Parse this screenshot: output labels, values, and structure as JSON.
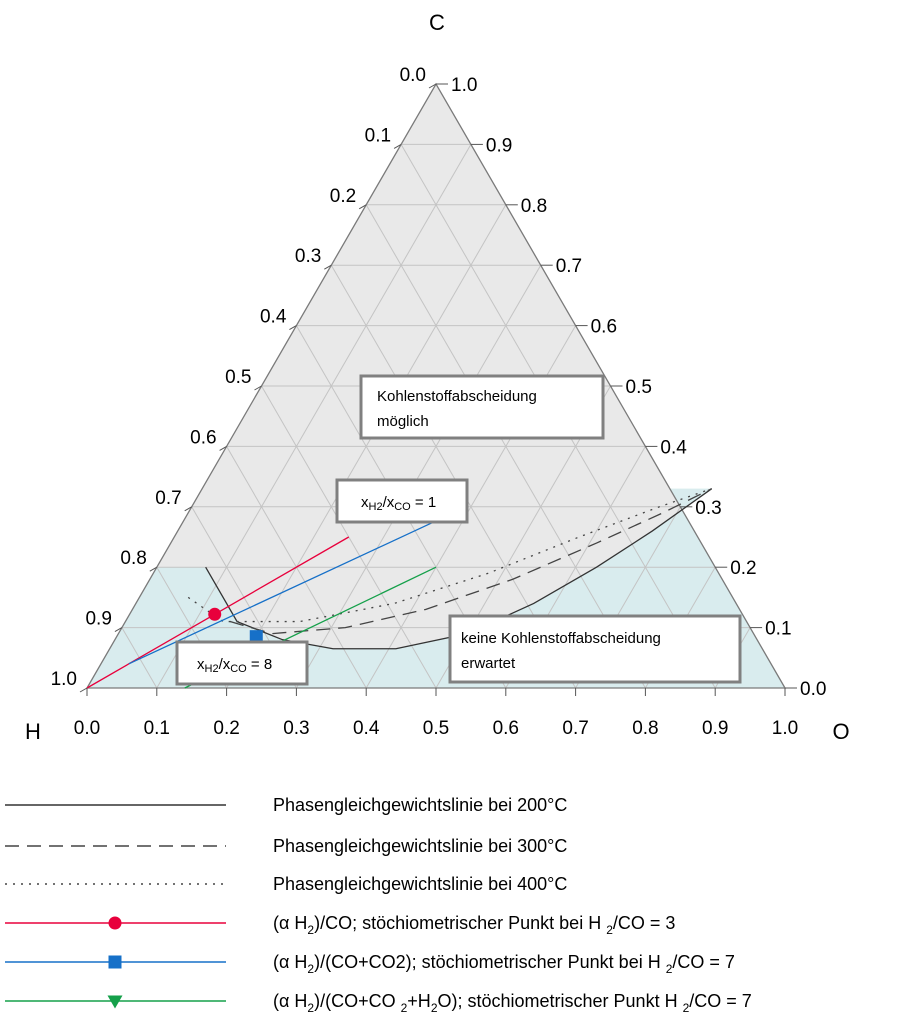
{
  "chart_data": {
    "type": "ternary",
    "axes": {
      "top": "C",
      "left": "H",
      "right": "O",
      "bottom_ticks": [
        "0.0",
        "0.1",
        "0.2",
        "0.3",
        "0.4",
        "0.5",
        "0.6",
        "0.7",
        "0.8",
        "0.9",
        "1.0"
      ],
      "left_ticks": [
        "0.0",
        "0.1",
        "0.2",
        "0.3",
        "0.4",
        "0.5",
        "0.6",
        "0.7",
        "0.8",
        "0.9",
        "1.0"
      ],
      "right_ticks": [
        "1.0",
        "0.9",
        "0.8",
        "0.7",
        "0.6",
        "0.5",
        "0.4",
        "0.3",
        "0.2",
        "0.1",
        "0.0"
      ]
    },
    "grid": true,
    "regions": [
      {
        "name": "Kohlenstoffabscheidung möglich",
        "color": "#e9e9e9"
      },
      {
        "name": "keine Kohlenstoffabscheidung erwartet",
        "color": "#d9ecee"
      }
    ],
    "boundary_lines": [
      {
        "name": "Phasengleichgewichtslinie bei 200°C",
        "style": "solid",
        "color": "#333333",
        "points": [
          {
            "O": 0.07,
            "C": 0.2
          },
          {
            "O": 0.16,
            "C": 0.11
          },
          {
            "O": 0.24,
            "C": 0.08
          },
          {
            "O": 0.32,
            "C": 0.065
          },
          {
            "O": 0.41,
            "C": 0.065
          },
          {
            "O": 0.5,
            "C": 0.09
          },
          {
            "O": 0.57,
            "C": 0.14
          },
          {
            "O": 0.63,
            "C": 0.2
          },
          {
            "O": 0.68,
            "C": 0.26
          },
          {
            "O": 0.73,
            "C": 0.33
          }
        ]
      },
      {
        "name": "Phasengleichgewichtslinie bei 300°C",
        "style": "dashed",
        "color": "#444444",
        "points": [
          {
            "O": 0.15,
            "C": 0.11
          },
          {
            "O": 0.22,
            "C": 0.09
          },
          {
            "O": 0.32,
            "C": 0.1
          },
          {
            "O": 0.42,
            "C": 0.13
          },
          {
            "O": 0.52,
            "C": 0.18
          },
          {
            "O": 0.61,
            "C": 0.24
          },
          {
            "O": 0.68,
            "C": 0.29
          },
          {
            "O": 0.73,
            "C": 0.33
          }
        ]
      },
      {
        "name": "Phasengleichgewichtslinie bei 400°C",
        "style": "dotted",
        "color": "#444444",
        "points": [
          {
            "O": 0.07,
            "C": 0.15
          },
          {
            "O": 0.14,
            "C": 0.11
          },
          {
            "O": 0.25,
            "C": 0.11
          },
          {
            "O": 0.37,
            "C": 0.14
          },
          {
            "O": 0.48,
            "C": 0.19
          },
          {
            "O": 0.58,
            "C": 0.25
          },
          {
            "O": 0.67,
            "C": 0.3
          },
          {
            "O": 0.73,
            "C": 0.33
          }
        ]
      }
    ],
    "series": [
      {
        "color": "#e8003c",
        "marker": "circle",
        "line": [
          {
            "O": 0.0,
            "C": 0.0
          },
          {
            "O": 0.25,
            "C": 0.25
          }
        ],
        "point": {
          "O": 0.122,
          "C": 0.122
        }
      },
      {
        "color": "#1670c8",
        "marker": "square",
        "line": [
          {
            "O": 0.04,
            "C": 0.04
          },
          {
            "O": 0.38,
            "C": 0.29
          }
        ],
        "point": {
          "O": 0.2,
          "C": 0.085
        }
      },
      {
        "color": "#15a04a",
        "marker": "triangle-down",
        "line": [
          {
            "O": 0.14,
            "C": 0.0
          },
          {
            "O": 0.4,
            "C": 0.2
          }
        ],
        "point": {
          "O": 0.215,
          "C": 0.066
        }
      }
    ],
    "annotations": {
      "carbon_possible": [
        "Kohlenstoffabscheidung",
        "möglich"
      ],
      "no_carbon": [
        "keine Kohlenstoffabscheidung",
        "erwartet"
      ],
      "ratio1": {
        "main": "x",
        "sub1": "H2",
        "sep": "/x",
        "sub2": "CO",
        "rest": " = 1"
      },
      "ratio8": {
        "main": "x",
        "sub1": "H2",
        "sep": "/x",
        "sub2": "CO",
        "rest": " = 8"
      }
    },
    "legend": [
      {
        "style": "solid",
        "color": "#333333",
        "marker": "none",
        "text": "Phasengleichgewichtslinie bei 200°C"
      },
      {
        "style": "dashed",
        "color": "#444444",
        "marker": "none",
        "text": "Phasengleichgewichtslinie bei 300°C"
      },
      {
        "style": "dotted",
        "color": "#444444",
        "marker": "none",
        "text": "Phasengleichgewichtslinie bei 400°C"
      },
      {
        "style": "solid",
        "color": "#e8003c",
        "marker": "circle",
        "parts": [
          [
            "(α H",
            ""
          ],
          [
            "2",
            "sub"
          ],
          [
            ")/CO; stöchiometrischer Punkt bei H ",
            ""
          ],
          [
            "2",
            "sub"
          ],
          [
            "/CO = 3",
            ""
          ]
        ]
      },
      {
        "style": "solid",
        "color": "#1670c8",
        "marker": "square",
        "parts": [
          [
            "(α H",
            ""
          ],
          [
            "2",
            "sub"
          ],
          [
            ")/(CO+CO2); stöchiometrischer Punkt bei H ",
            ""
          ],
          [
            "2",
            "sub"
          ],
          [
            "/CO = 7",
            ""
          ]
        ]
      },
      {
        "style": "solid",
        "color": "#15a04a",
        "marker": "triangle-down",
        "parts": [
          [
            "(α H",
            ""
          ],
          [
            "2",
            "sub"
          ],
          [
            ")/(CO+CO ",
            ""
          ],
          [
            "2",
            "sub"
          ],
          [
            "+H",
            ""
          ],
          [
            "2",
            "sub"
          ],
          [
            "O); stöchiometrischer Punkt H ",
            ""
          ],
          [
            "2",
            "sub"
          ],
          [
            "/CO = 7",
            ""
          ]
        ]
      }
    ]
  }
}
